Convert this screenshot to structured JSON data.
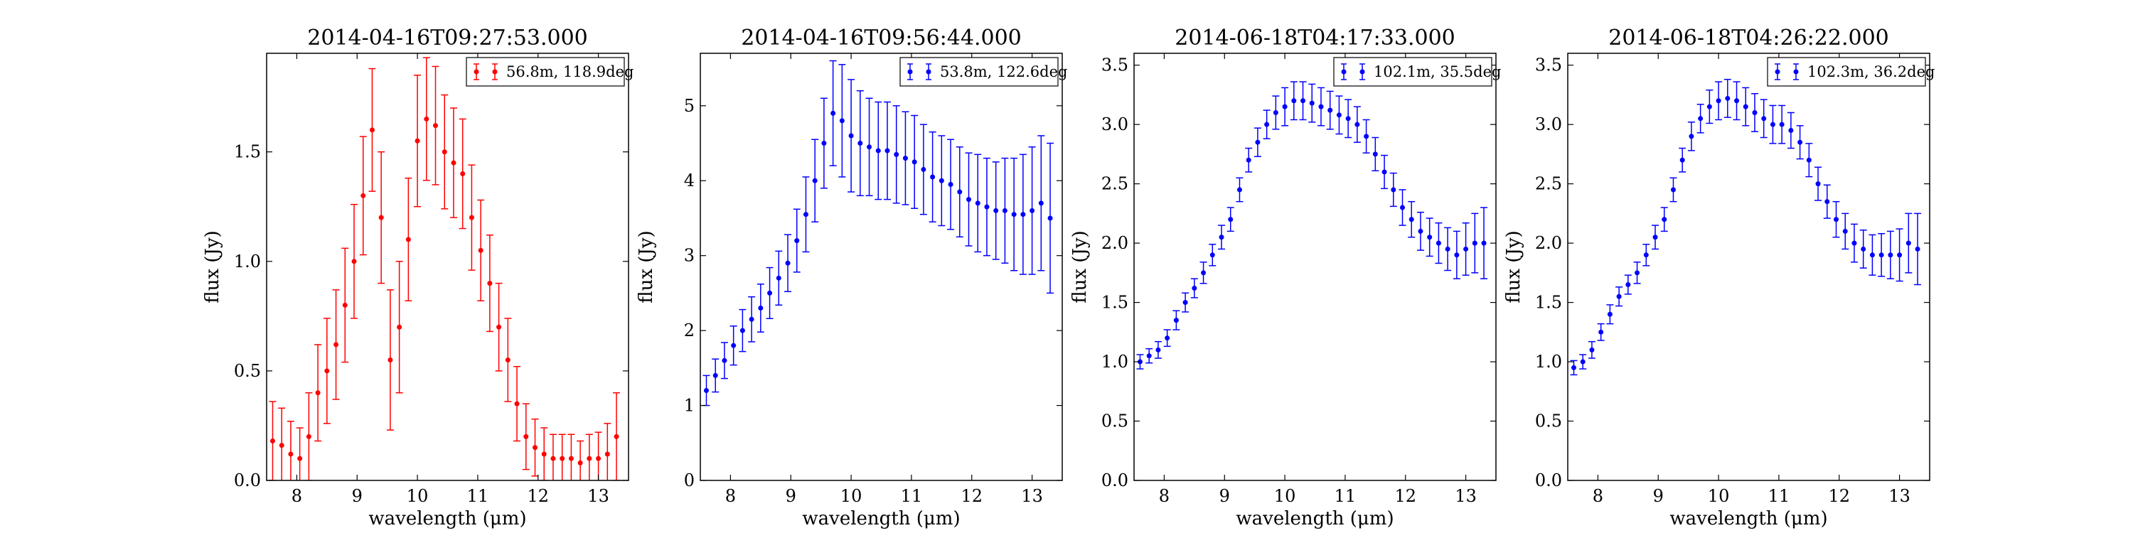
{
  "chart_data": [
    {
      "type": "scatter",
      "title": "2014-04-16T09:27:53.000",
      "xlabel": "wavelength (μm)",
      "ylabel": "flux (Jy)",
      "xlim": [
        7.5,
        13.5
      ],
      "ylim": [
        0.0,
        1.95
      ],
      "xticks": [
        "8",
        "9",
        "10",
        "11",
        "12",
        "13"
      ],
      "yticks": [
        "0.0",
        "0.5",
        "1.0",
        "1.5"
      ],
      "ytick_values": [
        0.0,
        0.5,
        1.0,
        1.5
      ],
      "legend": "top-right",
      "color": "#ff0000",
      "series": [
        {
          "name": "56.8m, 118.9deg",
          "x": [
            7.6,
            7.75,
            7.9,
            8.05,
            8.2,
            8.35,
            8.5,
            8.65,
            8.8,
            8.95,
            9.1,
            9.25,
            9.4,
            9.55,
            9.7,
            9.85,
            10.0,
            10.15,
            10.3,
            10.45,
            10.6,
            10.75,
            10.9,
            11.05,
            11.2,
            11.35,
            11.5,
            11.65,
            11.8,
            11.95,
            12.1,
            12.25,
            12.4,
            12.55,
            12.7,
            12.85,
            13.0,
            13.15,
            13.3
          ],
          "y": [
            0.18,
            0.16,
            0.12,
            0.1,
            0.2,
            0.4,
            0.5,
            0.62,
            0.8,
            1.0,
            1.3,
            1.6,
            1.2,
            0.55,
            0.7,
            1.1,
            1.55,
            1.65,
            1.62,
            1.5,
            1.45,
            1.4,
            1.2,
            1.05,
            0.9,
            0.7,
            0.55,
            0.35,
            0.2,
            0.15,
            0.12,
            0.1,
            0.1,
            0.1,
            0.08,
            0.1,
            0.1,
            0.12,
            0.2
          ],
          "err": [
            0.18,
            0.17,
            0.15,
            0.14,
            0.2,
            0.22,
            0.24,
            0.25,
            0.26,
            0.26,
            0.27,
            0.28,
            0.3,
            0.32,
            0.3,
            0.28,
            0.3,
            0.28,
            0.27,
            0.26,
            0.25,
            0.25,
            0.24,
            0.23,
            0.22,
            0.2,
            0.19,
            0.17,
            0.15,
            0.13,
            0.12,
            0.11,
            0.11,
            0.11,
            0.1,
            0.11,
            0.12,
            0.14,
            0.2
          ]
        }
      ]
    },
    {
      "type": "scatter",
      "title": "2014-04-16T09:56:44.000",
      "xlabel": "wavelength (μm)",
      "ylabel": "flux (Jy)",
      "xlim": [
        7.5,
        13.5
      ],
      "ylim": [
        0,
        5.7
      ],
      "xticks": [
        "8",
        "9",
        "10",
        "11",
        "12",
        "13"
      ],
      "yticks": [
        "0",
        "1",
        "2",
        "3",
        "4",
        "5"
      ],
      "ytick_values": [
        0,
        1,
        2,
        3,
        4,
        5
      ],
      "legend": "top-right",
      "color": "#0000ff",
      "series": [
        {
          "name": "53.8m, 122.6deg",
          "x": [
            7.6,
            7.75,
            7.9,
            8.05,
            8.2,
            8.35,
            8.5,
            8.65,
            8.8,
            8.95,
            9.1,
            9.25,
            9.4,
            9.55,
            9.7,
            9.85,
            10.0,
            10.15,
            10.3,
            10.45,
            10.6,
            10.75,
            10.9,
            11.05,
            11.2,
            11.35,
            11.5,
            11.65,
            11.8,
            11.95,
            12.1,
            12.25,
            12.4,
            12.55,
            12.7,
            12.85,
            13.0,
            13.15,
            13.3
          ],
          "y": [
            1.2,
            1.4,
            1.6,
            1.8,
            2.0,
            2.15,
            2.3,
            2.5,
            2.7,
            2.9,
            3.2,
            3.55,
            4.0,
            4.5,
            4.9,
            4.8,
            4.6,
            4.5,
            4.45,
            4.4,
            4.4,
            4.35,
            4.3,
            4.25,
            4.15,
            4.05,
            4.0,
            3.95,
            3.85,
            3.75,
            3.7,
            3.65,
            3.6,
            3.6,
            3.55,
            3.55,
            3.6,
            3.7,
            3.5
          ],
          "err": [
            0.2,
            0.22,
            0.24,
            0.26,
            0.28,
            0.3,
            0.32,
            0.34,
            0.36,
            0.38,
            0.42,
            0.5,
            0.55,
            0.6,
            0.7,
            0.75,
            0.75,
            0.7,
            0.65,
            0.65,
            0.65,
            0.65,
            0.62,
            0.62,
            0.6,
            0.6,
            0.6,
            0.6,
            0.6,
            0.62,
            0.65,
            0.65,
            0.65,
            0.7,
            0.75,
            0.8,
            0.85,
            0.9,
            1.0
          ]
        }
      ]
    },
    {
      "type": "scatter",
      "title": "2014-06-18T04:17:33.000",
      "xlabel": "wavelength (μm)",
      "ylabel": "flux (Jy)",
      "xlim": [
        7.5,
        13.5
      ],
      "ylim": [
        0.0,
        3.6
      ],
      "xticks": [
        "8",
        "9",
        "10",
        "11",
        "12",
        "13"
      ],
      "yticks": [
        "0.0",
        "0.5",
        "1.0",
        "1.5",
        "2.0",
        "2.5",
        "3.0",
        "3.5"
      ],
      "ytick_values": [
        0.0,
        0.5,
        1.0,
        1.5,
        2.0,
        2.5,
        3.0,
        3.5
      ],
      "legend": "top-right",
      "color": "#0000ff",
      "series": [
        {
          "name": "102.1m, 35.5deg",
          "x": [
            7.6,
            7.75,
            7.9,
            8.05,
            8.2,
            8.35,
            8.5,
            8.65,
            8.8,
            8.95,
            9.1,
            9.25,
            9.4,
            9.55,
            9.7,
            9.85,
            10.0,
            10.15,
            10.3,
            10.45,
            10.6,
            10.75,
            10.9,
            11.05,
            11.2,
            11.35,
            11.5,
            11.65,
            11.8,
            11.95,
            12.1,
            12.25,
            12.4,
            12.55,
            12.7,
            12.85,
            13.0,
            13.15,
            13.3
          ],
          "y": [
            1.0,
            1.05,
            1.1,
            1.2,
            1.35,
            1.5,
            1.62,
            1.75,
            1.9,
            2.05,
            2.2,
            2.45,
            2.7,
            2.85,
            3.0,
            3.1,
            3.15,
            3.2,
            3.2,
            3.18,
            3.15,
            3.12,
            3.08,
            3.05,
            3.0,
            2.9,
            2.75,
            2.6,
            2.45,
            2.3,
            2.2,
            2.1,
            2.05,
            2.0,
            1.95,
            1.9,
            1.95,
            2.0,
            2.0
          ],
          "err": [
            0.06,
            0.06,
            0.07,
            0.07,
            0.08,
            0.08,
            0.08,
            0.09,
            0.09,
            0.1,
            0.1,
            0.1,
            0.1,
            0.12,
            0.12,
            0.14,
            0.16,
            0.16,
            0.16,
            0.16,
            0.16,
            0.16,
            0.16,
            0.16,
            0.15,
            0.14,
            0.14,
            0.14,
            0.14,
            0.15,
            0.15,
            0.16,
            0.16,
            0.17,
            0.18,
            0.2,
            0.22,
            0.25,
            0.3
          ]
        }
      ]
    },
    {
      "type": "scatter",
      "title": "2014-06-18T04:26:22.000",
      "xlabel": "wavelength (μm)",
      "ylabel": "flux (Jy)",
      "xlim": [
        7.5,
        13.5
      ],
      "ylim": [
        0.0,
        3.6
      ],
      "xticks": [
        "8",
        "9",
        "10",
        "11",
        "12",
        "13"
      ],
      "yticks": [
        "0.0",
        "0.5",
        "1.0",
        "1.5",
        "2.0",
        "2.5",
        "3.0",
        "3.5"
      ],
      "ytick_values": [
        0.0,
        0.5,
        1.0,
        1.5,
        2.0,
        2.5,
        3.0,
        3.5
      ],
      "legend": "top-right",
      "color": "#0000ff",
      "series": [
        {
          "name": "102.3m, 36.2deg",
          "x": [
            7.6,
            7.75,
            7.9,
            8.05,
            8.2,
            8.35,
            8.5,
            8.65,
            8.8,
            8.95,
            9.1,
            9.25,
            9.4,
            9.55,
            9.7,
            9.85,
            10.0,
            10.15,
            10.3,
            10.45,
            10.6,
            10.75,
            10.9,
            11.05,
            11.2,
            11.35,
            11.5,
            11.65,
            11.8,
            11.95,
            12.1,
            12.25,
            12.4,
            12.55,
            12.7,
            12.85,
            13.0,
            13.15,
            13.3
          ],
          "y": [
            0.95,
            1.0,
            1.1,
            1.25,
            1.4,
            1.55,
            1.65,
            1.75,
            1.9,
            2.05,
            2.2,
            2.45,
            2.7,
            2.9,
            3.05,
            3.15,
            3.2,
            3.22,
            3.2,
            3.15,
            3.1,
            3.05,
            3.0,
            3.0,
            2.95,
            2.85,
            2.7,
            2.5,
            2.35,
            2.2,
            2.1,
            2.0,
            1.95,
            1.9,
            1.9,
            1.9,
            1.9,
            2.0,
            1.95
          ],
          "err": [
            0.06,
            0.06,
            0.07,
            0.07,
            0.08,
            0.08,
            0.08,
            0.09,
            0.09,
            0.1,
            0.1,
            0.1,
            0.1,
            0.12,
            0.12,
            0.14,
            0.16,
            0.16,
            0.16,
            0.16,
            0.16,
            0.16,
            0.16,
            0.16,
            0.15,
            0.14,
            0.14,
            0.14,
            0.14,
            0.15,
            0.15,
            0.16,
            0.16,
            0.17,
            0.18,
            0.2,
            0.22,
            0.25,
            0.3
          ]
        }
      ]
    }
  ]
}
